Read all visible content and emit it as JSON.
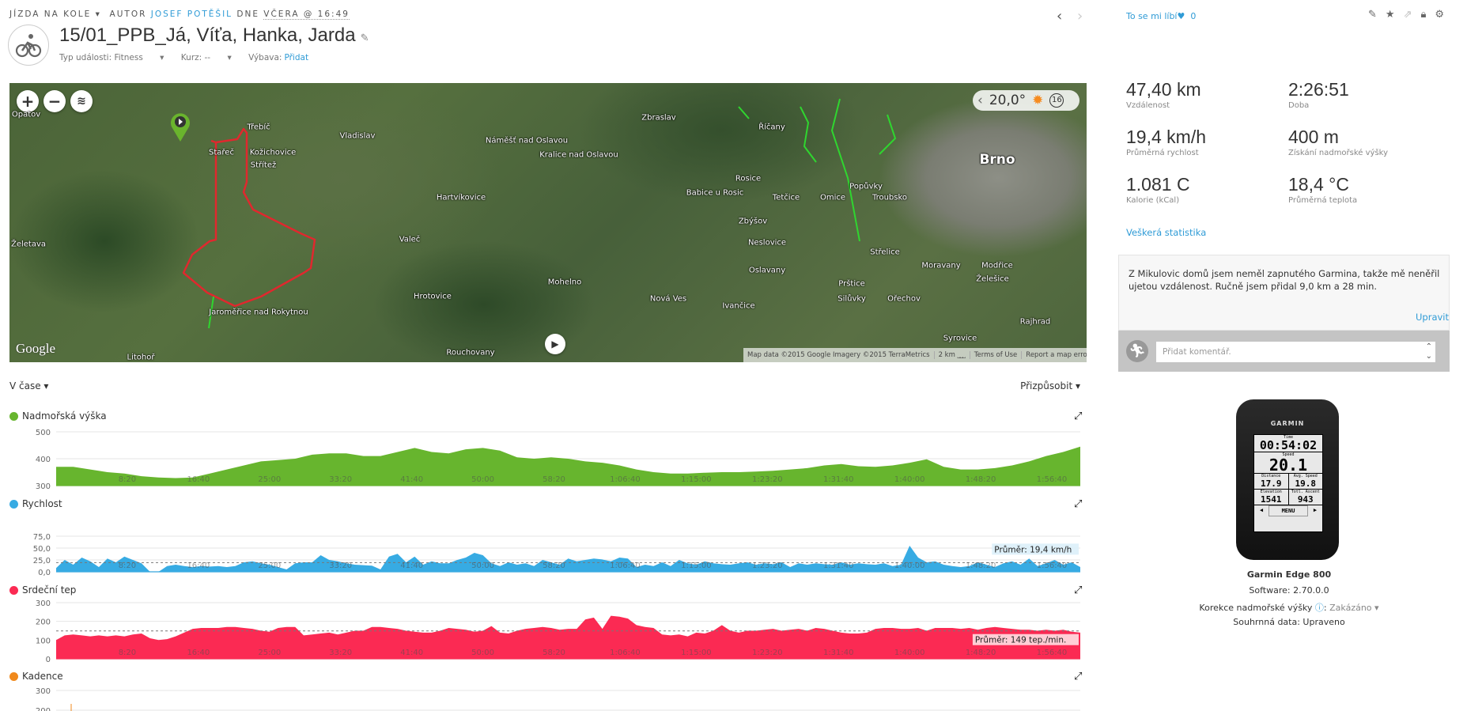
{
  "header": {
    "activity_type": "JÍZDA NA KOLE",
    "author_prefix": "AUTOR",
    "author": "JOSEF POTĚŠIL",
    "date_prefix": "DNE",
    "date": "VČERA @ 16:49",
    "title": "15/01_PPB_Já, Víťa, Hanka, Jarda",
    "event_type_label": "Typ události: Fitness",
    "course_label": "Kurz: --",
    "gear_label": "Výbava:",
    "gear_link": "Přidat",
    "icons": [
      "bike-icon",
      "pencil-icon",
      "chevron-left-icon",
      "chevron-right-icon"
    ]
  },
  "map": {
    "weather_temp": "20,0°",
    "weather_icon": "sun-icon",
    "wind_value": "16",
    "attribution": "Map data ©2015 Google Imagery ©2015 TerraMetrics",
    "scale": "2 km",
    "terms": "Terms of Use",
    "report": "Report a map error",
    "logo": "Google",
    "places": [
      "Opatov",
      "Třebíč",
      "Stařeč",
      "Kožichovice",
      "Střítež",
      "Vladislav",
      "Náměšť nad Oslavou",
      "Kralice nad Oslavou",
      "Zbraslav",
      "Říčany",
      "Hartvíkovice",
      "Rosice",
      "Babice u Rosic",
      "Tetčice",
      "Omice",
      "Popůvky",
      "Troubsko",
      "Brno",
      "Želetava",
      "Valeč",
      "Zbýšov",
      "Neslovice",
      "Střelice",
      "Moravany",
      "Hrotovice",
      "Mohelno",
      "Oslavany",
      "Nová Ves",
      "Ivančice",
      "Prštice",
      "Silůvky",
      "Ořechov",
      "Želešice",
      "Modřice",
      "Jaroměřice nad Rokytnou",
      "Rouchovany",
      "Syrovice",
      "Rajhrad",
      "Litohoř"
    ],
    "route_color": "#e0282e"
  },
  "charts_controls": {
    "x_mode": "V čase",
    "customize": "Přizpůsobit"
  },
  "chart_data": [
    {
      "type": "area",
      "title": "Nadmořská výška",
      "color": "#67b52e",
      "ylim": [
        300,
        500
      ],
      "yticks": [
        "500",
        "400",
        "300"
      ],
      "ytick_values": [
        500,
        400,
        300
      ],
      "x_start": "0:00",
      "x_end": "2:00:00",
      "xticks": [
        "8:20",
        "16:40",
        "25:00",
        "33:20",
        "41:40",
        "50:00",
        "58:20",
        "1:06:40",
        "1:15:00",
        "1:23:20",
        "1:31:40",
        "1:40:00",
        "1:48:20",
        "1:56:40"
      ],
      "values": [
        370,
        370,
        360,
        350,
        345,
        335,
        330,
        328,
        330,
        345,
        360,
        375,
        390,
        395,
        400,
        415,
        420,
        420,
        410,
        410,
        425,
        440,
        425,
        420,
        435,
        440,
        430,
        405,
        400,
        405,
        400,
        390,
        385,
        375,
        360,
        350,
        345,
        345,
        348,
        350,
        350,
        352,
        355,
        360,
        365,
        375,
        380,
        372,
        370,
        375,
        385,
        398,
        370,
        360,
        360,
        365,
        375,
        390,
        410,
        425,
        445
      ]
    },
    {
      "type": "area",
      "title": "Rychlost",
      "color": "#37abe3",
      "ylim": [
        0,
        75
      ],
      "yticks": [
        "75,0",
        "50,0",
        "25,0",
        "0,0"
      ],
      "ytick_values": [
        75,
        50,
        25,
        0
      ],
      "x_start": "0:00",
      "x_end": "2:00:00",
      "xticks": [
        "8:20",
        "16:40",
        "25:00",
        "33:20",
        "41:40",
        "50:00",
        "58:20",
        "1:06:40",
        "1:15:00",
        "1:23:20",
        "1:31:40",
        "1:40:00",
        "1:48:20",
        "1:56:40"
      ],
      "average": 19.4,
      "average_label": "Průměr: 19,4 km/h",
      "values": [
        8,
        25,
        15,
        30,
        22,
        10,
        28,
        20,
        32,
        25,
        18,
        0,
        0,
        12,
        15,
        12,
        10,
        12,
        11,
        12,
        10,
        12,
        20,
        22,
        18,
        15,
        10,
        5,
        18,
        20,
        20,
        35,
        25,
        22,
        18,
        15,
        14,
        13,
        5,
        32,
        38,
        20,
        32,
        15,
        22,
        18,
        18,
        25,
        30,
        40,
        35,
        18,
        12,
        20,
        15,
        18,
        12,
        25,
        20,
        15,
        28,
        22,
        25,
        28,
        26,
        22,
        30,
        28,
        10,
        15,
        12,
        20,
        12,
        25,
        18,
        15,
        22,
        18,
        16,
        15,
        18,
        20,
        15,
        18,
        16,
        20,
        10,
        18,
        15,
        18,
        16,
        15,
        20,
        15,
        18,
        16,
        15,
        18,
        12,
        15,
        55,
        30,
        20,
        22,
        15,
        12,
        10,
        12,
        20,
        15,
        10,
        18,
        22,
        15,
        28,
        12,
        18,
        25,
        15,
        20,
        10
      ]
    },
    {
      "type": "area",
      "title": "Srdeční tep",
      "color": "#fb2a53",
      "ylim": [
        0,
        300
      ],
      "yticks": [
        "300",
        "200",
        "100",
        "0"
      ],
      "ytick_values": [
        300,
        200,
        100,
        0
      ],
      "x_start": "0:00",
      "x_end": "2:00:00",
      "xticks": [
        "8:20",
        "16:40",
        "25:00",
        "33:20",
        "41:40",
        "50:00",
        "58:20",
        "1:06:40",
        "1:15:00",
        "1:23:20",
        "1:31:40",
        "1:40:00",
        "1:48:20",
        "1:56:40"
      ],
      "average": 149,
      "average_label": "Průměr: 149 tep./min.",
      "values": [
        100,
        125,
        130,
        125,
        120,
        125,
        120,
        125,
        120,
        130,
        135,
        110,
        100,
        105,
        120,
        140,
        160,
        165,
        165,
        165,
        170,
        170,
        165,
        160,
        150,
        145,
        165,
        170,
        170,
        125,
        130,
        135,
        140,
        130,
        140,
        150,
        150,
        170,
        170,
        165,
        160,
        150,
        145,
        140,
        140,
        150,
        165,
        160,
        155,
        145,
        150,
        175,
        140,
        135,
        150,
        160,
        165,
        170,
        165,
        155,
        160,
        160,
        210,
        220,
        160,
        230,
        225,
        215,
        180,
        170,
        165,
        130,
        125,
        130,
        120,
        140,
        135,
        150,
        180,
        150,
        140,
        150,
        150,
        155,
        160,
        150,
        155,
        160,
        150,
        165,
        160,
        150,
        140,
        135,
        135,
        140,
        160,
        165,
        165,
        160,
        160,
        165,
        150,
        165,
        165,
        165,
        160,
        165,
        155,
        165,
        170,
        165,
        160,
        155,
        155,
        150,
        155,
        150,
        155,
        145,
        140
      ]
    },
    {
      "type": "area",
      "title": "Kadence",
      "color": "#f0891c",
      "ylim": [
        0,
        300
      ],
      "yticks": [
        "300",
        "200"
      ],
      "ytick_values": [
        300,
        200
      ],
      "values": []
    }
  ],
  "sidebar": {
    "like_label": "To se mi líbí",
    "like_count": "0",
    "action_icons": [
      "pencil-icon",
      "star-icon",
      "share-icon",
      "lock-icon",
      "gear-icon"
    ],
    "stats": [
      {
        "value": "47,40 km",
        "label": "Vzdálenost"
      },
      {
        "value": "2:26:51",
        "label": "Doba"
      },
      {
        "value": "19,4 km/h",
        "label": "Průměrná rychlost"
      },
      {
        "value": "400 m",
        "label": "Získání nadmořské výšky"
      },
      {
        "value": "1.081 C",
        "label": "Kalorie (kCal)"
      },
      {
        "value": "18,4 °C",
        "label": "Průměrná teplota"
      }
    ],
    "all_stats_link": "Veškerá statistika",
    "description": "Z Mikulovic domů jsem neměl zapnutého Garmina, takže mě neněřil ujetou vzdálenost. Ručně jsem přidal 9,0 km a 28 min.",
    "edit_link": "Upravit",
    "comment_placeholder": "Přidat komentář.",
    "device": {
      "brand": "GARMIN",
      "screen": {
        "time_label": "Time",
        "time": "00:54:02",
        "speed_label": "Speed",
        "speed": "20.1",
        "distance_label": "Distance",
        "distance": "17.9",
        "avg_speed_label": "Avg. Speed",
        "avg_speed": "19.8",
        "elevation_label": "Elevation",
        "elevation": "1541",
        "ascent_label": "Totl. Ascent",
        "ascent": "943",
        "menu": "MENU"
      },
      "name": "Garmin Edge 800",
      "software": "Software: 2.70.0.0",
      "elev_correction_label": "Korekce nadmořské výšky",
      "elev_correction_value": "Zakázáno",
      "summary": "Souhrnná data: Upraveno"
    }
  }
}
